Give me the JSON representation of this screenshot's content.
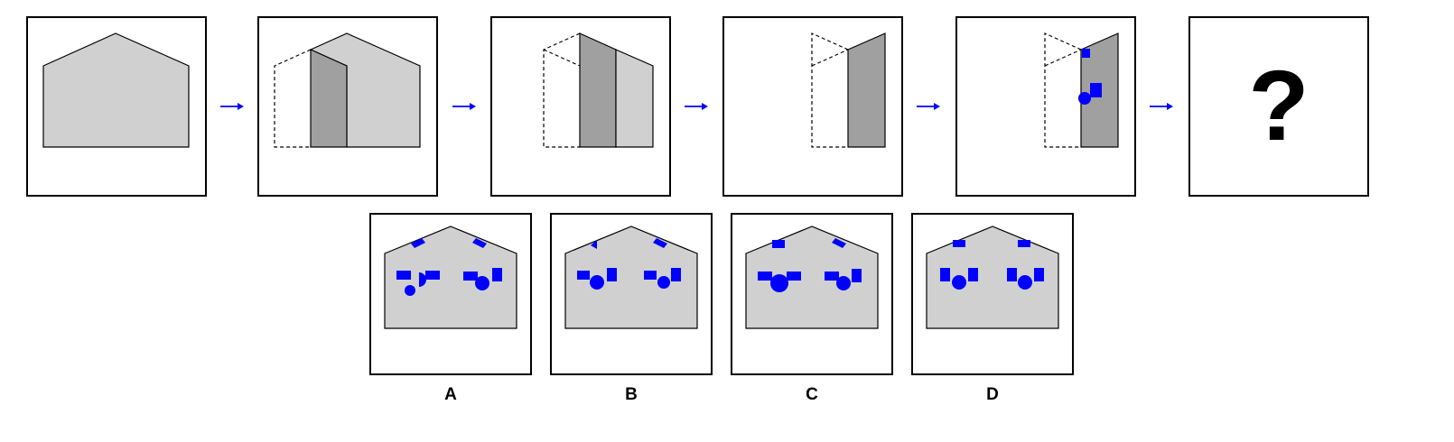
{
  "question_mark": "?",
  "options": [
    {
      "label": "A"
    },
    {
      "label": "B"
    },
    {
      "label": "C"
    },
    {
      "label": "D"
    }
  ],
  "colors": {
    "house_fill": "#d0d0d0",
    "shaded_fill": "#a0a0a0",
    "marker_blue": "#0000ff",
    "arrow_blue": "#0000ff",
    "outline": "#000000"
  }
}
